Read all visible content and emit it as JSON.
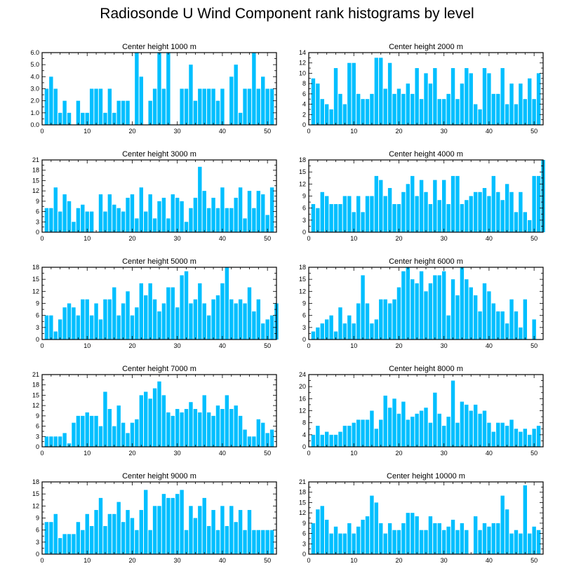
{
  "title": "Radiosonde U Wind Component rank histograms by level",
  "chart_data": [
    {
      "type": "bar",
      "title": "Center height 1000 m",
      "ylim": [
        0,
        6
      ],
      "yticks": [
        "0.0",
        "1.0",
        "2.0",
        "3.0",
        "4.0",
        "5.0",
        "6.0"
      ],
      "xticks": [
        "0",
        "10",
        "20",
        "30",
        "40",
        "50"
      ],
      "xlim": [
        0,
        52
      ],
      "values": [
        3,
        4,
        3,
        1,
        2,
        1,
        0,
        2,
        1,
        1,
        3,
        3,
        3,
        1,
        3,
        1,
        2,
        2,
        2,
        0,
        6,
        4,
        0,
        2,
        3,
        6,
        3,
        6,
        0,
        0,
        3,
        3,
        5,
        2,
        3,
        3,
        3,
        3,
        2,
        3,
        0,
        4,
        5,
        1,
        3,
        3,
        6,
        3,
        4,
        3,
        3
      ]
    },
    {
      "type": "bar",
      "title": "Center height 2000 m",
      "ylim": [
        0,
        14
      ],
      "yticks": [
        "0",
        "2",
        "4",
        "6",
        "8",
        "10",
        "12",
        "14"
      ],
      "xticks": [
        "0",
        "10",
        "20",
        "30",
        "40",
        "50"
      ],
      "xlim": [
        0,
        52
      ],
      "values": [
        9,
        8,
        5,
        4,
        3,
        11,
        6,
        4,
        12,
        12,
        6,
        5,
        5,
        6,
        13,
        13,
        7,
        12,
        6,
        7,
        6,
        8,
        6,
        11,
        5,
        10,
        8,
        11,
        5,
        5,
        6,
        11,
        5,
        8,
        11,
        10,
        4,
        3,
        11,
        10,
        6,
        6,
        11,
        4,
        8,
        4,
        8,
        5,
        9,
        5,
        10
      ]
    },
    {
      "type": "bar",
      "title": "Center height 3000 m",
      "ylim": [
        0,
        21
      ],
      "yticks": [
        "0",
        "3",
        "6",
        "9",
        "12",
        "15",
        "18",
        "21"
      ],
      "xticks": [
        "0",
        "10",
        "20",
        "30",
        "40",
        "50"
      ],
      "xlim": [
        0,
        52
      ],
      "values": [
        7,
        7,
        13,
        6,
        11,
        9,
        3,
        7,
        8,
        6,
        6,
        0,
        11,
        6,
        11,
        8,
        7,
        6,
        10,
        11,
        4,
        13,
        6,
        11,
        4,
        9,
        10,
        4,
        11,
        10,
        9,
        3,
        7,
        10,
        19,
        12,
        7,
        10,
        7,
        13,
        7,
        7,
        10,
        13,
        4,
        12,
        7,
        12,
        11,
        5,
        13
      ]
    },
    {
      "type": "bar",
      "title": "Center height 4000 m",
      "ylim": [
        0,
        18
      ],
      "yticks": [
        "0",
        "3",
        "6",
        "9",
        "12",
        "15",
        "18"
      ],
      "xticks": [
        "0",
        "10",
        "20",
        "30",
        "40",
        "50"
      ],
      "xlim": [
        0,
        52
      ],
      "values": [
        7,
        6,
        10,
        9,
        7,
        7,
        7,
        9,
        9,
        5,
        9,
        5,
        9,
        9,
        14,
        13,
        9,
        11,
        7,
        7,
        10,
        12,
        14,
        9,
        13,
        10,
        7,
        13,
        8,
        13,
        7,
        14,
        14,
        7,
        8,
        9,
        10,
        10,
        11,
        9,
        14,
        10,
        8,
        12,
        10,
        5,
        10,
        5,
        3,
        14,
        14,
        18
      ]
    },
    {
      "type": "bar",
      "title": "Center height 5000 m",
      "ylim": [
        0,
        18
      ],
      "yticks": [
        "0",
        "3",
        "6",
        "9",
        "12",
        "15",
        "18"
      ],
      "xticks": [
        "0",
        "10",
        "20",
        "30",
        "40",
        "50"
      ],
      "xlim": [
        0,
        52
      ],
      "values": [
        6,
        6,
        2,
        5,
        8,
        9,
        8,
        6,
        10,
        10,
        6,
        9,
        5,
        10,
        10,
        13,
        6,
        9,
        12,
        6,
        8,
        14,
        11,
        14,
        10,
        7,
        9,
        13,
        13,
        8,
        16,
        17,
        9,
        10,
        14,
        9,
        6,
        10,
        11,
        14,
        18,
        10,
        9,
        10,
        9,
        13,
        7,
        10,
        4,
        5,
        6,
        9
      ]
    },
    {
      "type": "bar",
      "title": "Center height 6000 m",
      "ylim": [
        0,
        18
      ],
      "yticks": [
        "0",
        "3",
        "6",
        "9",
        "12",
        "15",
        "18"
      ],
      "xticks": [
        "0",
        "10",
        "20",
        "30",
        "40",
        "50"
      ],
      "xlim": [
        0,
        52
      ],
      "values": [
        2,
        3,
        4,
        5,
        6,
        2,
        8,
        4,
        6,
        4,
        9,
        16,
        9,
        4,
        5,
        10,
        10,
        9,
        10,
        13,
        17,
        18,
        15,
        14,
        17,
        12,
        14,
        16,
        16,
        17,
        6,
        15,
        11,
        18,
        15,
        13,
        11,
        7,
        14,
        12,
        9,
        7,
        7,
        4,
        10,
        7,
        3,
        10,
        0,
        5
      ]
    },
    {
      "type": "bar",
      "title": "Center height 7000 m",
      "ylim": [
        0,
        21
      ],
      "yticks": [
        "0",
        "3",
        "6",
        "9",
        "12",
        "15",
        "18",
        "21"
      ],
      "xticks": [
        "0",
        "10",
        "20",
        "30",
        "40",
        "50"
      ],
      "xlim": [
        0,
        52
      ],
      "values": [
        3,
        3,
        3,
        3,
        4,
        1,
        7,
        9,
        9,
        10,
        9,
        9,
        6,
        16,
        11,
        6,
        12,
        7,
        4,
        7,
        8,
        15,
        16,
        14,
        17,
        19,
        15,
        10,
        9,
        11,
        10,
        11,
        13,
        11,
        10,
        15,
        10,
        9,
        12,
        11,
        15,
        11,
        12,
        9,
        5,
        3,
        3,
        8,
        7,
        4,
        5
      ]
    },
    {
      "type": "bar",
      "title": "Center height 8000 m",
      "ylim": [
        0,
        24
      ],
      "yticks": [
        "0",
        "4",
        "8",
        "12",
        "16",
        "20",
        "24"
      ],
      "xticks": [
        "0",
        "10",
        "20",
        "30",
        "40",
        "50"
      ],
      "xlim": [
        0,
        52
      ],
      "values": [
        4,
        7,
        4,
        5,
        4,
        4,
        5,
        7,
        7,
        8,
        9,
        9,
        9,
        12,
        6,
        9,
        17,
        13,
        16,
        11,
        15,
        9,
        10,
        11,
        12,
        13,
        8,
        18,
        11,
        7,
        10,
        22,
        8,
        15,
        14,
        12,
        14,
        11,
        12,
        8,
        5,
        8,
        8,
        7,
        9,
        6,
        5,
        6,
        4,
        6,
        7
      ]
    },
    {
      "type": "bar",
      "title": "Center height 9000 m",
      "ylim": [
        0,
        18
      ],
      "yticks": [
        "0",
        "3",
        "6",
        "9",
        "12",
        "15",
        "18"
      ],
      "xticks": [
        "0",
        "10",
        "20",
        "30",
        "40",
        "50"
      ],
      "xlim": [
        0,
        52
      ],
      "values": [
        8,
        8,
        10,
        4,
        5,
        5,
        5,
        8,
        6,
        10,
        7,
        11,
        14,
        7,
        10,
        10,
        13,
        8,
        11,
        9,
        6,
        11,
        16,
        6,
        12,
        12,
        15,
        14,
        14,
        15,
        16,
        6,
        12,
        9,
        12,
        14,
        7,
        11,
        6,
        12,
        7,
        12,
        8,
        11,
        6,
        11,
        6,
        6,
        6,
        6,
        6
      ]
    },
    {
      "type": "bar",
      "title": "Center height 10000 m",
      "ylim": [
        0,
        21
      ],
      "yticks": [
        "0",
        "3",
        "6",
        "9",
        "12",
        "15",
        "18",
        "21"
      ],
      "xticks": [
        "0",
        "10",
        "20",
        "30",
        "40",
        "50"
      ],
      "xlim": [
        0,
        52
      ],
      "values": [
        9,
        13,
        14,
        10,
        6,
        8,
        6,
        6,
        9,
        6,
        8,
        10,
        11,
        17,
        15,
        9,
        6,
        9,
        7,
        7,
        9,
        12,
        12,
        11,
        7,
        7,
        11,
        9,
        9,
        7,
        8,
        10,
        7,
        9,
        7,
        0,
        11,
        7,
        9,
        8,
        9,
        9,
        17,
        13,
        6,
        7,
        6,
        20,
        6,
        8,
        7
      ]
    }
  ]
}
